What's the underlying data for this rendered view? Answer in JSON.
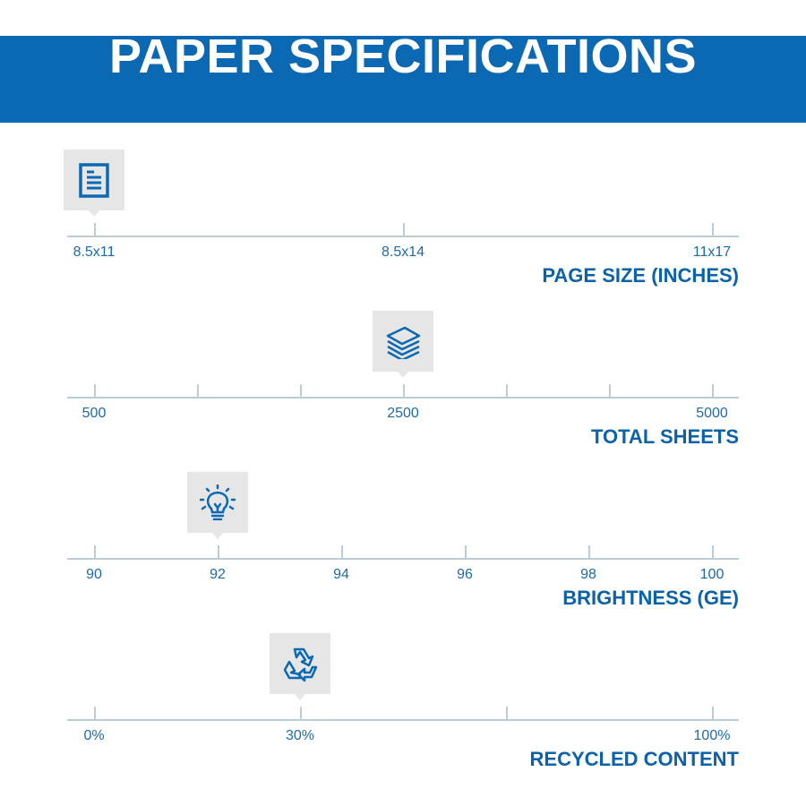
{
  "header": {
    "title": "PAPER SPECIFICATIONS"
  },
  "colors": {
    "brand_blue": "#0b68b3",
    "axis": "#b9cdd5",
    "marker_bg": "#e6e6e6"
  },
  "scales": [
    {
      "title": "PAGE SIZE (INCHES)",
      "icon": "document-icon",
      "ticks": [
        "8.5x11",
        "8.5x14",
        "11x17"
      ],
      "selected": "8.5x11",
      "selected_index": 0
    },
    {
      "title": "TOTAL SHEETS",
      "icon": "paper-stack-icon",
      "ticks": [
        "500",
        "",
        "",
        "2500",
        "",
        "",
        "5000"
      ],
      "selected": "2500",
      "selected_index": 3
    },
    {
      "title": "BRIGHTNESS (GE)",
      "icon": "lightbulb-icon",
      "ticks": [
        "90",
        "92",
        "94",
        "96",
        "98",
        "100"
      ],
      "selected": "92",
      "selected_index": 1
    },
    {
      "title": "RECYCLED CONTENT",
      "icon": "recycle-icon",
      "ticks": [
        "0%",
        "30%",
        "",
        "100%"
      ],
      "selected": "30%",
      "selected_index": 1
    }
  ]
}
